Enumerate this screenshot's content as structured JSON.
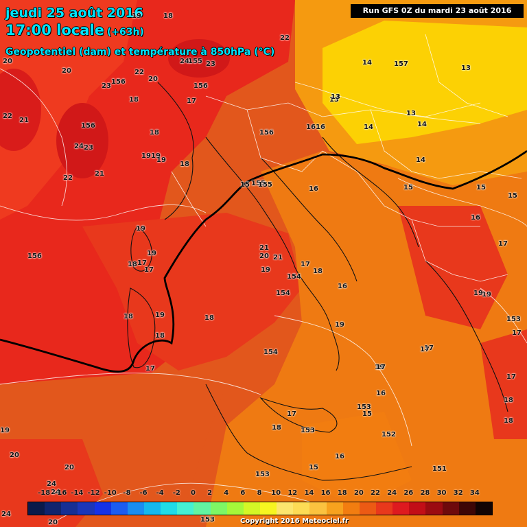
{
  "header": {
    "date": "jeudi 25 août 2016",
    "time": "17:00 locale",
    "lead": "(+63h)",
    "parameter": "Geopotentiel (dam) et température à 850hPa (°C)",
    "run": "Run GFS 0Z du mardi 23 août 2016"
  },
  "colors": {
    "very_warm_red": "#e8281c",
    "warm_red": "#ef3a1f",
    "orange_red": "#e2571c",
    "orange": "#ef7a12",
    "light_orange": "#f59a10",
    "yellow_orange": "#f7b90a",
    "yellow": "#fcd104"
  },
  "temperature_labels": [
    {
      "text": "19"
    },
    {
      "text": "18"
    },
    {
      "text": "22"
    },
    {
      "text": "20"
    },
    {
      "text": "20"
    },
    {
      "text": "22"
    },
    {
      "text": "21"
    },
    {
      "text": "23"
    },
    {
      "text": "156"
    },
    {
      "text": "22"
    },
    {
      "text": "20"
    },
    {
      "text": "24"
    },
    {
      "text": "155"
    },
    {
      "text": "23"
    },
    {
      "text": "156"
    },
    {
      "text": "18"
    },
    {
      "text": "156"
    },
    {
      "text": "24"
    },
    {
      "text": "23"
    },
    {
      "text": "22"
    },
    {
      "text": "21"
    },
    {
      "text": "19"
    },
    {
      "text": "19"
    },
    {
      "text": "19"
    },
    {
      "text": "18"
    },
    {
      "text": "17"
    },
    {
      "text": "18"
    },
    {
      "text": "156"
    },
    {
      "text": "155"
    },
    {
      "text": "15"
    },
    {
      "text": "155"
    },
    {
      "text": "16"
    },
    {
      "text": "16"
    },
    {
      "text": "16"
    },
    {
      "text": "13"
    },
    {
      "text": "14"
    },
    {
      "text": "157"
    },
    {
      "text": "13"
    },
    {
      "text": "13"
    },
    {
      "text": "13"
    },
    {
      "text": "14"
    },
    {
      "text": "14"
    },
    {
      "text": "14"
    },
    {
      "text": "15"
    },
    {
      "text": "15"
    },
    {
      "text": "15"
    },
    {
      "text": "16"
    },
    {
      "text": "17"
    },
    {
      "text": "19"
    },
    {
      "text": "156"
    },
    {
      "text": "19"
    },
    {
      "text": "18"
    },
    {
      "text": "17"
    },
    {
      "text": "17"
    },
    {
      "text": "21"
    },
    {
      "text": "20"
    },
    {
      "text": "21"
    },
    {
      "text": "17"
    },
    {
      "text": "19"
    },
    {
      "text": "154"
    },
    {
      "text": "18"
    },
    {
      "text": "154"
    },
    {
      "text": "16"
    },
    {
      "text": "18"
    },
    {
      "text": "19"
    },
    {
      "text": "18"
    },
    {
      "text": "17"
    },
    {
      "text": "17"
    },
    {
      "text": "19"
    },
    {
      "text": "18"
    },
    {
      "text": "19"
    },
    {
      "text": "19"
    },
    {
      "text": "17"
    },
    {
      "text": "19"
    },
    {
      "text": "154"
    },
    {
      "text": "153"
    },
    {
      "text": "17"
    },
    {
      "text": "17"
    },
    {
      "text": "17"
    },
    {
      "text": "18"
    },
    {
      "text": "16"
    },
    {
      "text": "153"
    },
    {
      "text": "15"
    },
    {
      "text": "17"
    },
    {
      "text": "152"
    },
    {
      "text": "18"
    },
    {
      "text": "18"
    },
    {
      "text": "153"
    },
    {
      "text": "16"
    },
    {
      "text": "15"
    },
    {
      "text": "151"
    },
    {
      "text": "153"
    },
    {
      "text": "19"
    },
    {
      "text": "20"
    },
    {
      "text": "20"
    },
    {
      "text": "24"
    },
    {
      "text": "24"
    },
    {
      "text": "24"
    },
    {
      "text": "20"
    },
    {
      "text": "153"
    }
  ],
  "legend": {
    "ticks": [
      "-18",
      "-16",
      "-14",
      "-12",
      "-10",
      "-8",
      "-6",
      "-4",
      "-2",
      "0",
      "2",
      "4",
      "6",
      "8",
      "10",
      "12",
      "14",
      "16",
      "18",
      "20",
      "22",
      "24",
      "26",
      "28",
      "30",
      "32",
      "34"
    ],
    "swatches": [
      "#0b1a4a",
      "#10246d",
      "#162f94",
      "#1b36b8",
      "#1632e6",
      "#1c5cf2",
      "#1a8df2",
      "#15b8ee",
      "#20dbe8",
      "#45f0d2",
      "#62f3a2",
      "#7ef765",
      "#a5f83a",
      "#d4f726",
      "#f7f520",
      "#fce66e",
      "#fddc55",
      "#fbc23f",
      "#f7a21e",
      "#f27d10",
      "#ec5a14",
      "#e8381c",
      "#de1a1f",
      "#c20e17",
      "#9b0b11",
      "#6e0a0c",
      "#3e0606",
      "#120404"
    ]
  },
  "copyright": "Copyright 2016 Meteociel.fr"
}
